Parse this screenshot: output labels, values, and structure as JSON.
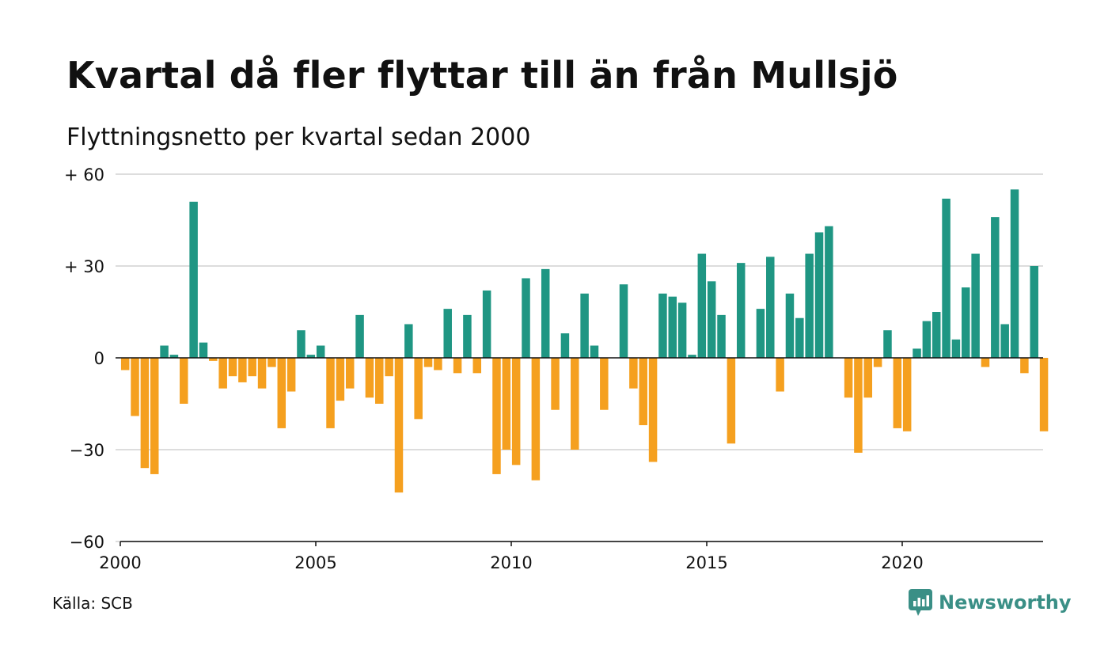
{
  "title": "Kvartal då fler flyttar till än från Mullsjö",
  "subtitle": "Flyttningsnetto per kvartal sedan 2000",
  "source": "Källa: SCB",
  "brand": "Newsworthy",
  "colors": {
    "positive": "#1f9683",
    "negative": "#f5a01f",
    "grid": "#dddddd",
    "brand": "#3a8f86"
  },
  "chart_data": {
    "type": "bar",
    "title": "Kvartal då fler flyttar till än från Mullsjö",
    "subtitle": "Flyttningsnetto per kvartal sedan 2000",
    "ylim": [
      -60,
      60
    ],
    "yticks": [
      {
        "value": 60,
        "label": "+ 60"
      },
      {
        "value": 30,
        "label": "+ 30"
      },
      {
        "value": 0,
        "label": "0"
      },
      {
        "value": -30,
        "label": "−30"
      },
      {
        "value": -60,
        "label": "−60"
      }
    ],
    "xticks": [
      {
        "value": 2000,
        "label": "2000"
      },
      {
        "value": 2005,
        "label": "2005"
      },
      {
        "value": 2010,
        "label": "2010"
      },
      {
        "value": 2015,
        "label": "2015"
      },
      {
        "value": 2020,
        "label": "2020"
      }
    ],
    "grid": true,
    "x_start": "2000 Q1",
    "values": [
      -4,
      -19,
      -36,
      -38,
      4,
      1,
      -15,
      51,
      5,
      -1,
      -10,
      -6,
      -8,
      -6,
      -10,
      -3,
      -23,
      -11,
      9,
      1,
      4,
      -23,
      -14,
      -10,
      14,
      -13,
      -15,
      -6,
      -44,
      11,
      -20,
      -3,
      -4,
      16,
      -5,
      14,
      -5,
      22,
      -38,
      -30,
      -35,
      26,
      -40,
      29,
      -17,
      8,
      -30,
      21,
      4,
      -17,
      0,
      24,
      -10,
      -22,
      -34,
      21,
      20,
      18,
      1,
      34,
      25,
      14,
      -28,
      31,
      0,
      16,
      33,
      -11,
      21,
      13,
      34,
      41,
      43,
      0,
      -13,
      -31,
      -13,
      -3,
      9,
      -23,
      -24,
      3,
      12,
      15,
      52,
      6,
      23,
      34,
      -3,
      46,
      11,
      55,
      -5,
      30,
      -24
    ]
  }
}
